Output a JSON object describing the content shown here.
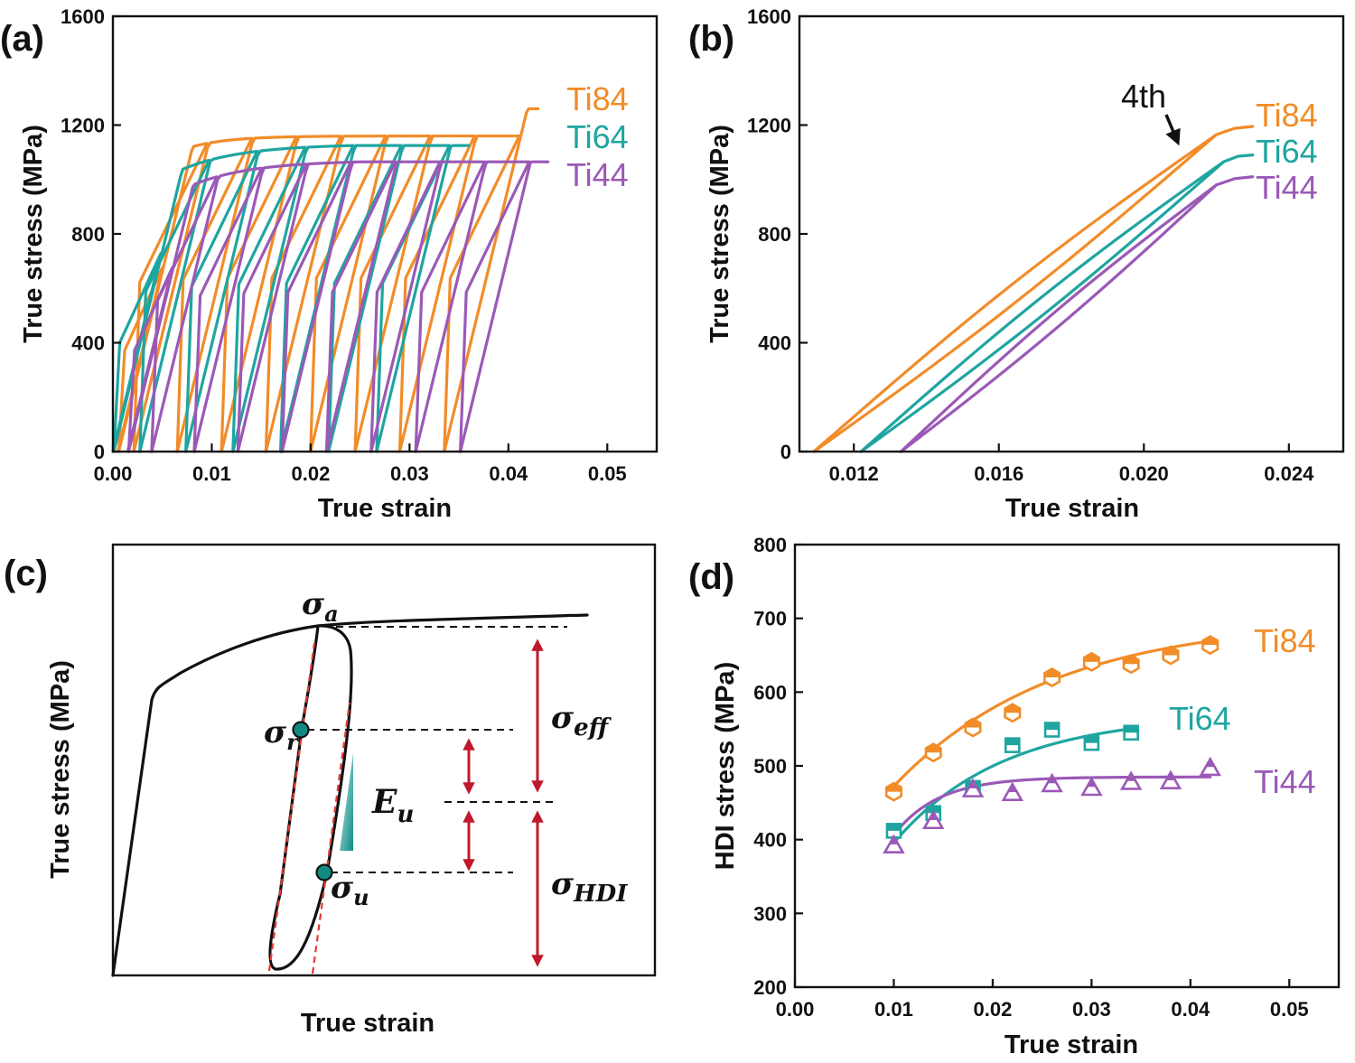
{
  "colors": {
    "Ti84": "#F28C28",
    "Ti64": "#1FA5A0",
    "Ti44": "#9B59B6",
    "axis": "#111111",
    "arrow": "#C0182B",
    "dashed_red": "#E53935"
  },
  "panels": {
    "a": {
      "label": "(a)",
      "xlabel": "True strain",
      "ylabel": "True stress (MPa)",
      "xticks": [
        "0.00",
        "0.01",
        "0.02",
        "0.03",
        "0.04",
        "0.05"
      ],
      "yticks": [
        "0",
        "400",
        "800",
        "1200",
        "1600"
      ],
      "legend": [
        "Ti84",
        "Ti64",
        "Ti44"
      ]
    },
    "b": {
      "label": "(b)",
      "xlabel": "True strain",
      "ylabel": "True stress (MPa)",
      "xticks": [
        "0.012",
        "0.016",
        "0.020",
        "0.024"
      ],
      "yticks": [
        "0",
        "400",
        "800",
        "1200",
        "1600"
      ],
      "legend": [
        "Ti84",
        "Ti64",
        "Ti44"
      ],
      "annotation": "4th"
    },
    "c": {
      "label": "(c)",
      "xlabel": "True strain",
      "ylabel": "True stress (MPa)",
      "sym": {
        "a_main": "σ",
        "a_sub": "a",
        "r_main": "σ",
        "r_sub": "r",
        "u_main": "σ",
        "u_sub": "u",
        "eff_main": "σ",
        "eff_sub": "eff",
        "hdi_main": "σ",
        "hdi_sub": "HDI",
        "E_main": "E",
        "E_sub": "u"
      }
    },
    "d": {
      "label": "(d)",
      "xlabel": "True strain",
      "ylabel": "HDI stress (MPa)",
      "xticks": [
        "0.00",
        "0.01",
        "0.02",
        "0.03",
        "0.04",
        "0.05"
      ],
      "yticks": [
        "200",
        "300",
        "400",
        "500",
        "600",
        "700",
        "800"
      ],
      "legend": [
        "Ti84",
        "Ti64",
        "Ti44"
      ]
    }
  },
  "chart_data": [
    {
      "panel": "a",
      "type": "line",
      "xlim": [
        0,
        0.055
      ],
      "ylim": [
        0,
        1600
      ],
      "series": [
        {
          "name": "Ti84",
          "loops": 9,
          "final_strain": 0.043,
          "peak_stress": 1260
        },
        {
          "name": "Ti64",
          "loops": 7,
          "final_strain": 0.036,
          "peak_stress": 1125
        },
        {
          "name": "Ti44",
          "loops": 9,
          "final_strain": 0.044,
          "peak_stress": 1065
        }
      ]
    },
    {
      "panel": "b",
      "type": "line",
      "xlim": [
        0.0105,
        0.0255
      ],
      "ylim": [
        0,
        1600
      ],
      "series": [
        {
          "name": "Ti84",
          "unload_start": [
            0.022,
            1165
          ],
          "zero_strain": 0.0109,
          "reload_end": [
            0.023,
            1195
          ]
        },
        {
          "name": "Ti64",
          "unload_start": [
            0.0222,
            1065
          ],
          "zero_strain": 0.0122,
          "reload_end": [
            0.023,
            1090
          ]
        },
        {
          "name": "Ti44",
          "unload_start": [
            0.022,
            980
          ],
          "zero_strain": 0.0133,
          "reload_end": [
            0.023,
            1010
          ]
        }
      ]
    },
    {
      "panel": "d",
      "type": "scatter",
      "xlim": [
        0,
        0.055
      ],
      "ylim": [
        200,
        800
      ],
      "x": [
        0.01,
        0.014,
        0.018,
        0.022,
        0.026,
        0.03,
        0.034,
        0.038,
        0.042
      ],
      "series": [
        {
          "name": "Ti84",
          "marker": "hexagon",
          "values": [
            465,
            518,
            552,
            572,
            620,
            641,
            638,
            650,
            664
          ]
        },
        {
          "name": "Ti64",
          "marker": "square",
          "values": [
            412,
            436,
            470,
            528,
            549,
            531,
            545
          ]
        },
        {
          "name": "Ti44",
          "marker": "triangle",
          "values": [
            392,
            425,
            468,
            463,
            475,
            470,
            478,
            479,
            497
          ]
        }
      ]
    }
  ]
}
